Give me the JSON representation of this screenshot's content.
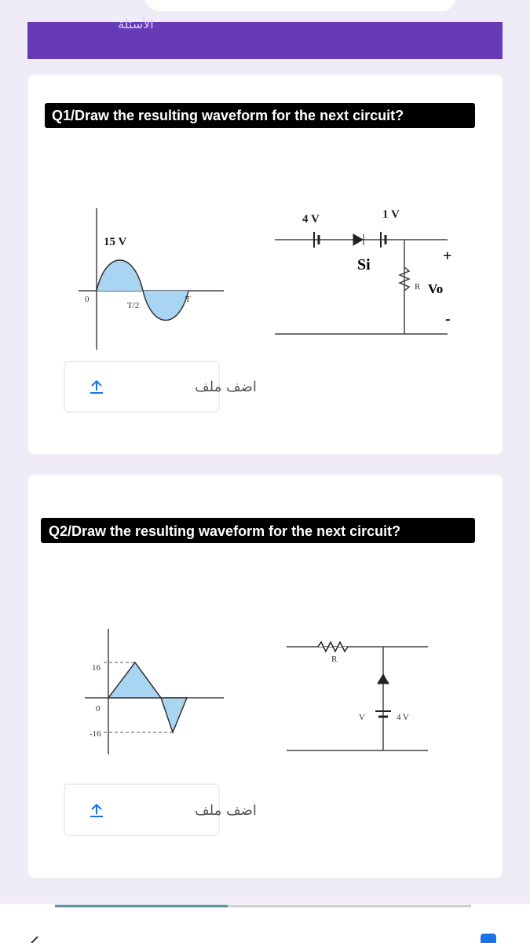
{
  "header": {
    "title": "الأسئلة"
  },
  "questions": [
    {
      "title": "Q1/Draw the resulting waveform for the next circuit?",
      "waveform_labels": [
        "15 V",
        "0",
        "T/2",
        "T"
      ],
      "circuit_labels": [
        "4 V",
        "1 V",
        "Si",
        "Vo",
        "R",
        "+",
        "-"
      ],
      "upload_button": "اضف ملف"
    },
    {
      "title": "Q2/Draw the resulting waveform for the next circuit?",
      "waveform_labels": [
        "16",
        "0",
        "-16"
      ],
      "circuit_labels": [
        "R",
        "4 V",
        "V"
      ],
      "upload_button": "اضف ملف"
    }
  ]
}
